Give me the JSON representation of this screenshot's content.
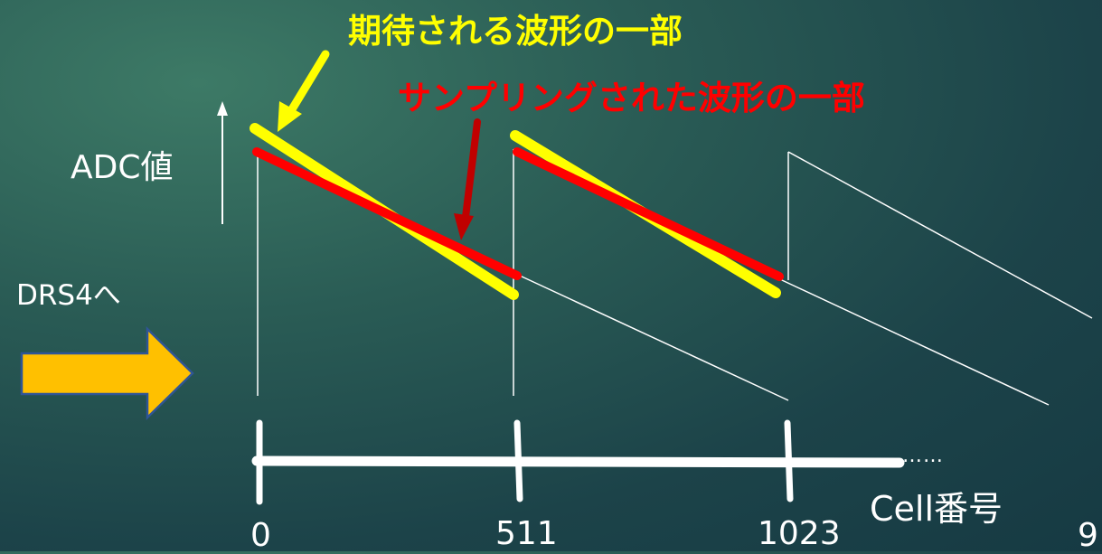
{
  "slide": {
    "page_number": "9"
  },
  "annotations": {
    "expected_waveform": "期待される波形の一部",
    "sampled_waveform": "サンプリングされた波形の一部"
  },
  "axes": {
    "y_label": "ADC値",
    "x_label": "Cell番号",
    "x_ticks": [
      "0",
      "511",
      "1023"
    ],
    "ellipsis": "……"
  },
  "input": {
    "label": "DRS4へ",
    "arrow_color": "#ffc000"
  },
  "colors": {
    "expected": "#ffff00",
    "sampled": "#ff0000",
    "pointer_sampled": "#c00000",
    "waveform": "#ffffff"
  }
}
